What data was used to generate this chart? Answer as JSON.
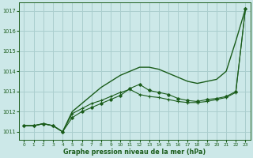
{
  "x": [
    0,
    1,
    2,
    3,
    4,
    5,
    6,
    7,
    8,
    9,
    10,
    11,
    12,
    13,
    14,
    15,
    16,
    17,
    18,
    19,
    20,
    21,
    22,
    23
  ],
  "line_smooth": [
    1011.3,
    1011.3,
    1011.4,
    1011.3,
    1011.0,
    1012.0,
    1012.4,
    1012.8,
    1013.2,
    1013.5,
    1013.8,
    1014.0,
    1014.2,
    1014.2,
    1014.1,
    1013.9,
    1013.7,
    1013.5,
    1013.4,
    1013.5,
    1013.6,
    1014.0,
    1015.5,
    1017.1
  ],
  "line_markers1": [
    1011.3,
    1011.3,
    1011.4,
    1011.3,
    1011.0,
    1011.7,
    1012.0,
    1012.2,
    1012.4,
    1012.6,
    1012.8,
    1013.15,
    1013.35,
    1013.05,
    1012.95,
    1012.85,
    1012.65,
    1012.55,
    1012.5,
    1012.6,
    1012.65,
    1012.75,
    1013.0,
    1017.1
  ],
  "line_markers2": [
    1011.3,
    1011.3,
    1011.4,
    1011.3,
    1011.0,
    1011.9,
    1012.15,
    1012.4,
    1012.55,
    1012.75,
    1012.95,
    1013.1,
    1012.85,
    1012.75,
    1012.7,
    1012.6,
    1012.5,
    1012.45,
    1012.45,
    1012.5,
    1012.6,
    1012.7,
    1012.95,
    1017.1
  ],
  "bg_color": "#cce8e8",
  "grid_color": "#aacece",
  "line_color": "#1a5c1a",
  "xlabel": "Graphe pression niveau de la mer (hPa)",
  "ylim_min": 1010.6,
  "ylim_max": 1017.4,
  "xlim_min": -0.5,
  "xlim_max": 23.5,
  "yticks": [
    1011,
    1012,
    1013,
    1014,
    1015,
    1016,
    1017
  ],
  "xticks": [
    0,
    1,
    2,
    3,
    4,
    5,
    6,
    7,
    8,
    9,
    10,
    11,
    12,
    13,
    14,
    15,
    16,
    17,
    18,
    19,
    20,
    21,
    22,
    23
  ]
}
